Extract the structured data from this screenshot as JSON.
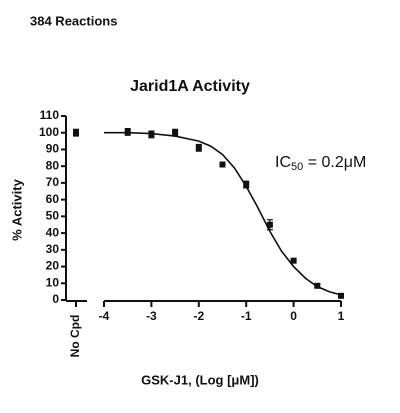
{
  "header": "384 Reactions",
  "chart_data": {
    "type": "scatter",
    "title": "Jarid1A Activity",
    "x_label": "GSK-J1, (Log [μM])",
    "y_label": "% Activity",
    "annotation_parts": [
      "IC",
      "50",
      " = 0.2μM"
    ],
    "control": {
      "label": "No Cpd",
      "value": 100,
      "error": 2
    },
    "x": [
      -3.5,
      -3,
      -2.5,
      -2,
      -1.5,
      -1,
      -0.5,
      0,
      0.5,
      1
    ],
    "values": [
      100.5,
      99,
      100,
      91,
      81,
      69,
      45,
      23.5,
      8.5,
      2.5
    ],
    "errors": [
      2,
      2,
      2,
      2,
      1,
      2,
      3,
      1,
      1,
      1
    ],
    "curve": {
      "x": [
        -4,
        -3.5,
        -3,
        -2.5,
        -2,
        -1.75,
        -1.5,
        -1.25,
        -1,
        -0.75,
        -0.5,
        -0.25,
        0,
        0.25,
        0.5,
        0.75,
        1
      ],
      "values": [
        100,
        100,
        99.5,
        98,
        95,
        92,
        87,
        79,
        68,
        55,
        41,
        29,
        20,
        13,
        8,
        5,
        3
      ]
    },
    "color": "#111111",
    "xlim": [
      -4,
      1
    ],
    "xticks": [
      -4,
      -3,
      -2,
      -1,
      0,
      1
    ],
    "ylim": [
      0,
      110
    ],
    "yticks": [
      0,
      10,
      20,
      30,
      40,
      50,
      60,
      70,
      80,
      90,
      100,
      110
    ]
  }
}
